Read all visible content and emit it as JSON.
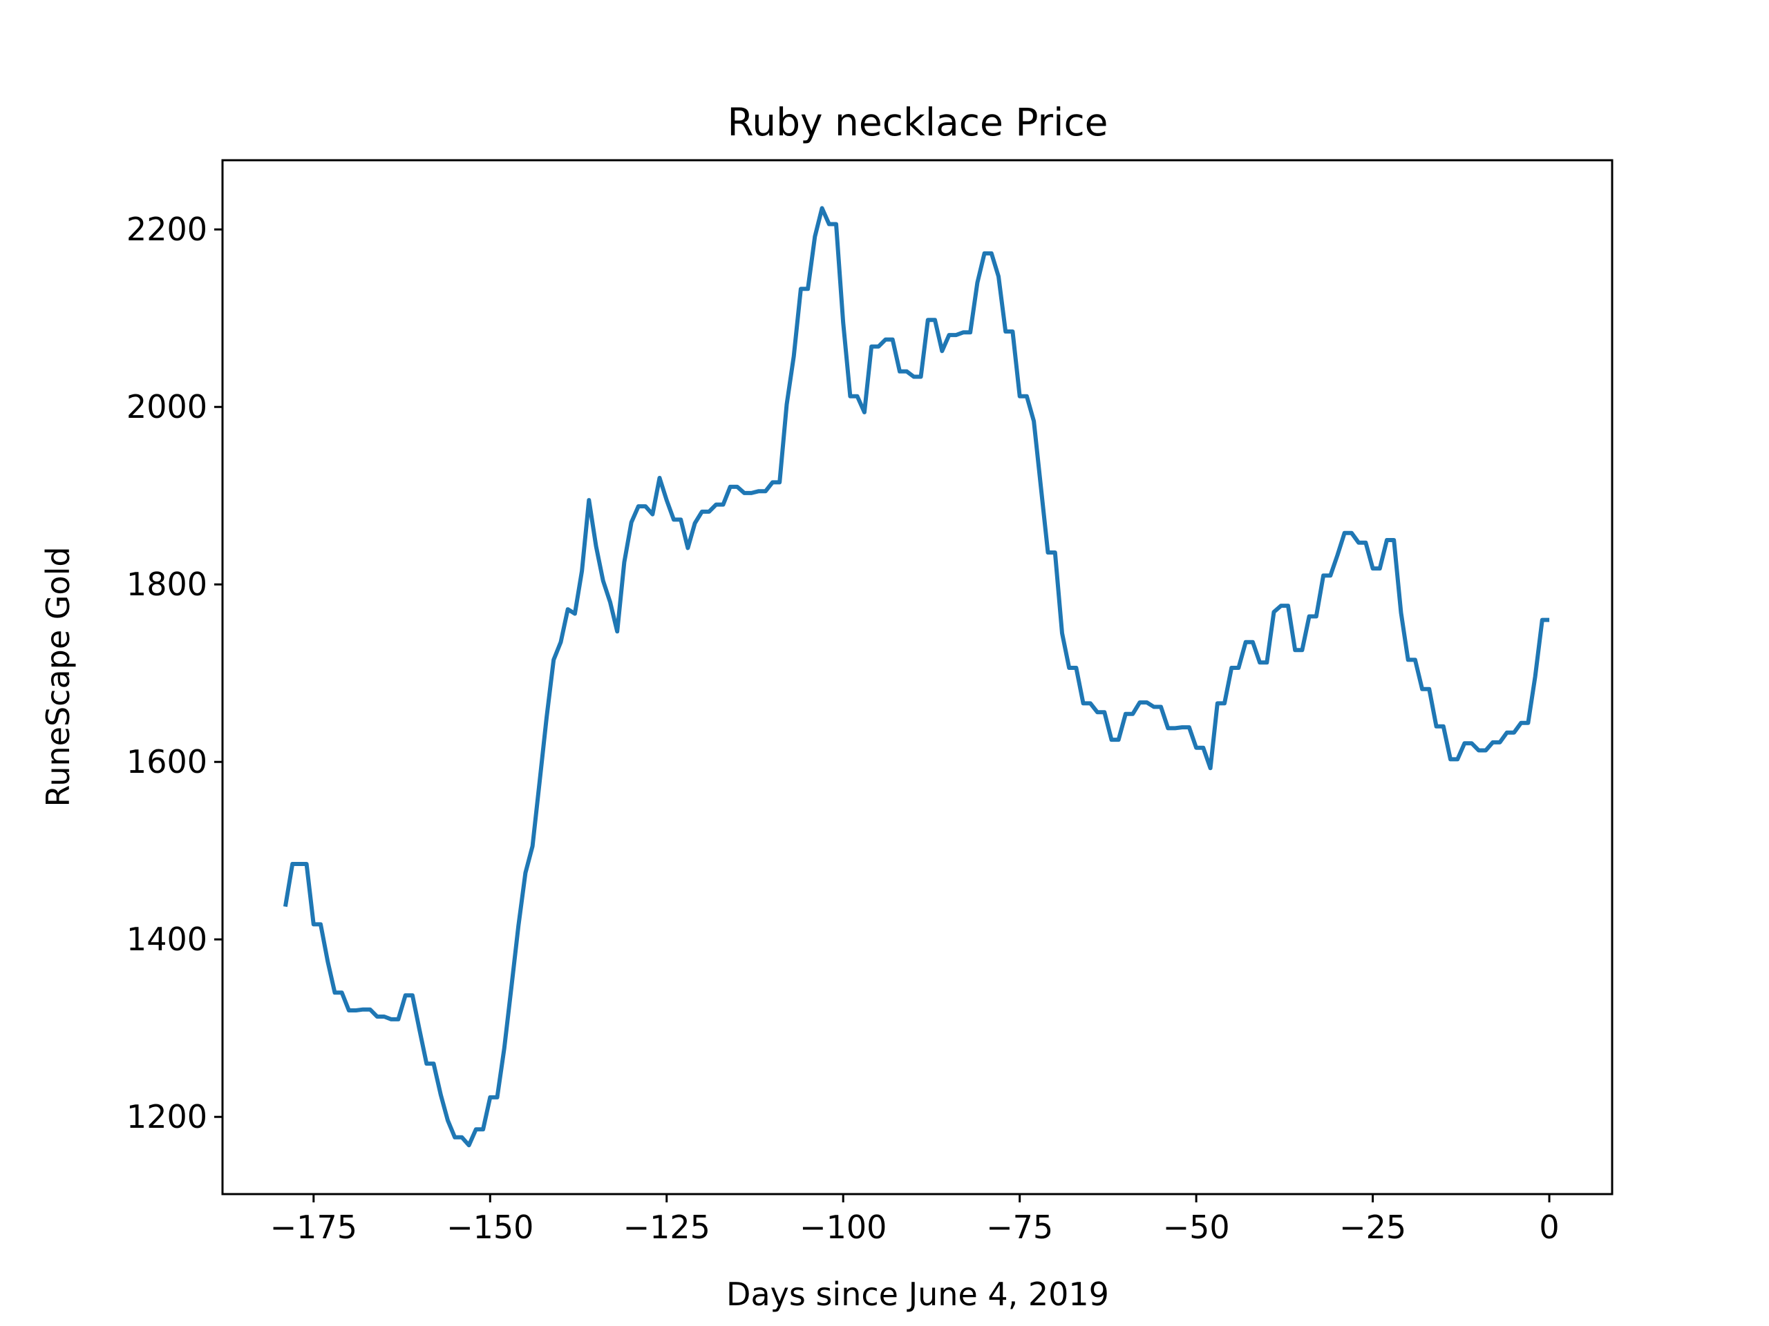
{
  "chart_data": {
    "type": "line",
    "title": "Ruby necklace Price",
    "xlabel": "Days since June 4, 2019",
    "ylabel": "RuneScape Gold",
    "xlim": [
      -187.9,
      8.9
    ],
    "ylim": [
      1113,
      2278
    ],
    "x_ticks": [
      -175,
      -150,
      -125,
      -100,
      -75,
      -50,
      -25,
      0
    ],
    "x_tick_labels": [
      "−175",
      "−150",
      "−125",
      "−100",
      "−75",
      "−50",
      "−25",
      "0"
    ],
    "y_ticks": [
      1200,
      1400,
      1600,
      1800,
      2000,
      2200
    ],
    "y_tick_labels": [
      "1200",
      "1400",
      "1600",
      "1800",
      "2000",
      "2200"
    ],
    "grid": false,
    "line_color": "#1f77b4",
    "series": [
      {
        "x": [
          -179,
          -178,
          -177,
          -176,
          -175,
          -174,
          -173,
          -172,
          -171,
          -170,
          -169,
          -168,
          -167,
          -166,
          -165,
          -164,
          -163,
          -162,
          -161,
          -160,
          -159,
          -158,
          -157,
          -156,
          -155,
          -154,
          -153,
          -152,
          -151,
          -150,
          -149,
          -148,
          -147,
          -146,
          -145,
          -144,
          -143,
          -142,
          -141,
          -140,
          -139,
          -138,
          -137,
          -136,
          -135,
          -134,
          -133,
          -132,
          -131,
          -130,
          -129,
          -128,
          -127,
          -126,
          -125,
          -124,
          -123,
          -122,
          -121,
          -120,
          -119,
          -118,
          -117,
          -116,
          -115,
          -114,
          -113,
          -112,
          -111,
          -110,
          -109,
          -108,
          -107,
          -106,
          -105,
          -104,
          -103,
          -102,
          -101,
          -100,
          -99,
          -98,
          -97,
          -96,
          -95,
          -94,
          -93,
          -92,
          -91,
          -90,
          -89,
          -88,
          -87,
          -86,
          -85,
          -84,
          -83,
          -82,
          -81,
          -80,
          -79,
          -78,
          -77,
          -76,
          -75,
          -74,
          -73,
          -72,
          -71,
          -70,
          -69,
          -68,
          -67,
          -66,
          -65,
          -64,
          -63,
          -62,
          -61,
          -60,
          -59,
          -58,
          -57,
          -56,
          -55,
          -54,
          -53,
          -52,
          -51,
          -50,
          -49,
          -48,
          -47,
          -46,
          -45,
          -44,
          -43,
          -42,
          -41,
          -40,
          -39,
          -38,
          -37,
          -36,
          -35,
          -34,
          -33,
          -32,
          -31,
          -30,
          -29,
          -28,
          -27,
          -26,
          -25,
          -24,
          -23,
          -22,
          -21,
          -20,
          -19,
          -18,
          -17,
          -16,
          -15,
          -14,
          -13,
          -12,
          -11,
          -10,
          -9,
          -8,
          -7,
          -6,
          -5,
          -4,
          -3,
          -2,
          -1,
          0
        ],
        "values": [
          1437,
          1485,
          1485,
          1485,
          1417,
          1417,
          1375,
          1340,
          1340,
          1320,
          1320,
          1321,
          1321,
          1313,
          1313,
          1310,
          1310,
          1337,
          1337,
          1298,
          1260,
          1260,
          1225,
          1196,
          1177,
          1177,
          1168,
          1186,
          1186,
          1222,
          1222,
          1277,
          1345,
          1415,
          1475,
          1505,
          1577,
          1650,
          1715,
          1735,
          1772,
          1767,
          1815,
          1895,
          1843,
          1804,
          1780,
          1747,
          1825,
          1870,
          1888,
          1888,
          1879,
          1920,
          1895,
          1873,
          1873,
          1841,
          1869,
          1882,
          1882,
          1890,
          1890,
          1910,
          1910,
          1903,
          1903,
          1905,
          1905,
          1915,
          1915,
          2003,
          2057,
          2133,
          2133,
          2192,
          2224,
          2206,
          2206,
          2095,
          2012,
          2012,
          1994,
          2068,
          2068,
          2076,
          2076,
          2040,
          2040,
          2034,
          2034,
          2098,
          2098,
          2063,
          2081,
          2081,
          2084,
          2084,
          2140,
          2173,
          2173,
          2147,
          2085,
          2085,
          2012,
          2012,
          1984,
          1910,
          1836,
          1836,
          1745,
          1706,
          1706,
          1666,
          1666,
          1656,
          1656,
          1625,
          1625,
          1654,
          1654,
          1667,
          1667,
          1662,
          1662,
          1638,
          1638,
          1639,
          1639,
          1616,
          1616,
          1593,
          1666,
          1666,
          1706,
          1706,
          1735,
          1735,
          1712,
          1712,
          1769,
          1776,
          1776,
          1726,
          1726,
          1764,
          1764,
          1810,
          1810,
          1833,
          1858,
          1858,
          1847,
          1847,
          1818,
          1818,
          1850,
          1850,
          1768,
          1715,
          1715,
          1682,
          1682,
          1640,
          1640,
          1603,
          1603,
          1621,
          1621,
          1613,
          1613,
          1622,
          1622,
          1633,
          1633,
          1644,
          1644,
          1696,
          1760,
          1760
        ]
      }
    ]
  }
}
